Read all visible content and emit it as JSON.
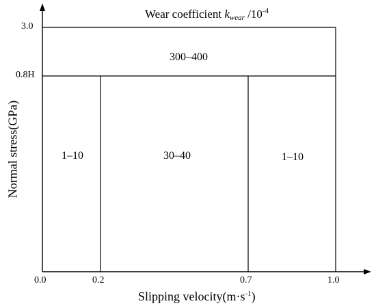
{
  "title": {
    "prefix": "Wear coefficient ",
    "symbol": "k",
    "subscript": "wear",
    "unit": " /10",
    "exponent": "-4"
  },
  "y_axis": {
    "label": "Normal stress(GPa)",
    "ticks": [
      "3.0",
      "0.8H"
    ]
  },
  "x_axis": {
    "label_main": "Slipping velocity(m·s",
    "label_exp": "-1",
    "label_close": ")",
    "ticks": [
      "0.0",
      "0.2",
      "0.7",
      "1.0"
    ]
  },
  "regions": {
    "high_stress": "300–400",
    "low_left": "1–10",
    "low_middle": "30–40",
    "low_right": "1–10"
  },
  "colors": {
    "line": "#000000",
    "background": "#ffffff"
  }
}
